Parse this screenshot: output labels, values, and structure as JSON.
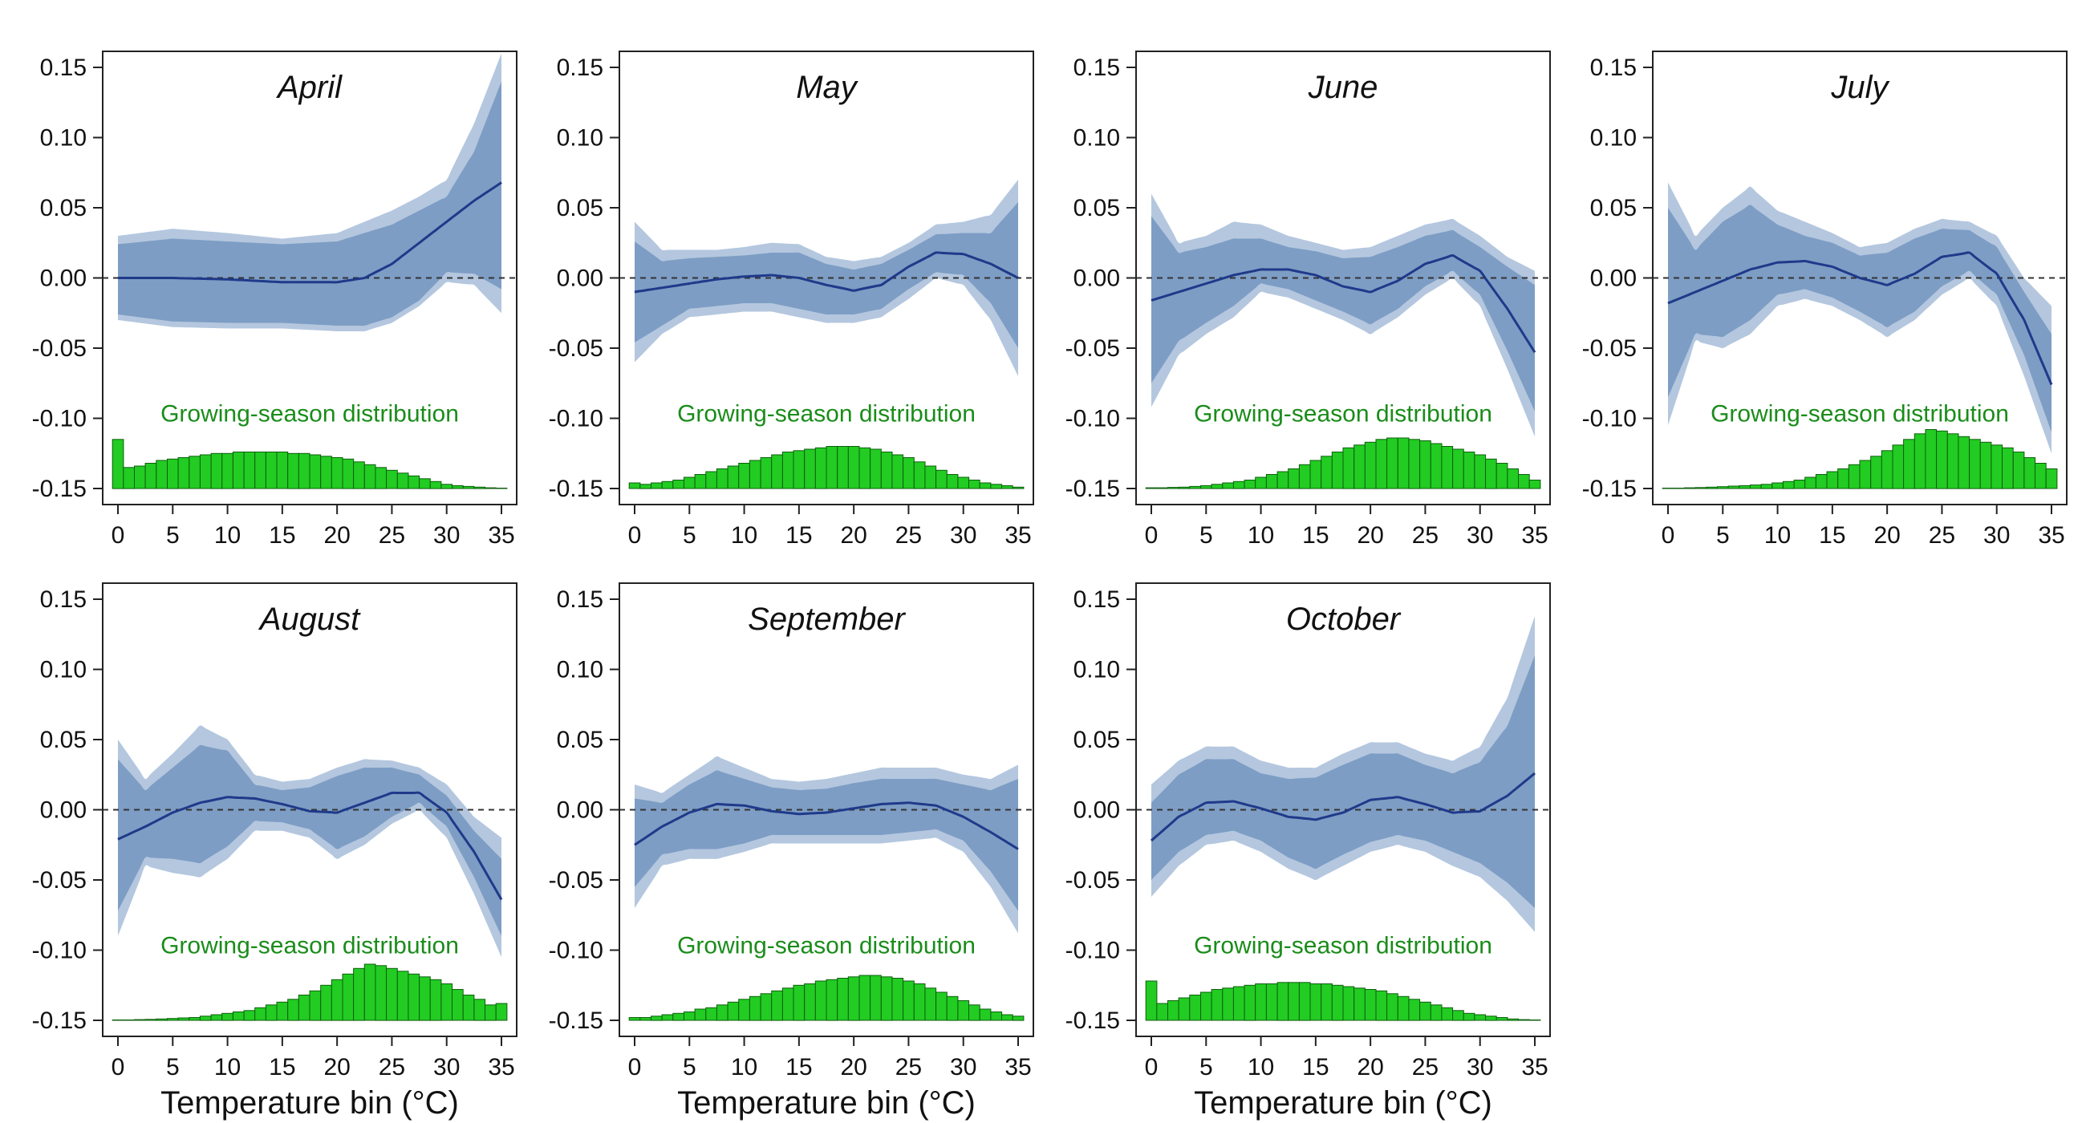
{
  "chart_data": [
    {
      "type": "line",
      "title": "April",
      "xlabel": "",
      "ylabel": "",
      "annotation": "Growing-season distribution",
      "xlim": [
        0,
        35
      ],
      "ylim": [
        -0.15,
        0.15
      ],
      "x_ticks": [
        0,
        5,
        10,
        15,
        20,
        25,
        30,
        35
      ],
      "y_ticks": [
        -0.15,
        -0.1,
        -0.05,
        0.0,
        0.05,
        0.1,
        0.15
      ],
      "x": [
        0,
        5,
        10,
        15,
        20,
        22.5,
        25,
        27.5,
        30,
        32.5,
        35
      ],
      "estimate": [
        0.0,
        0.0,
        -0.001,
        -0.003,
        -0.003,
        0.0,
        0.01,
        0.025,
        0.04,
        0.055,
        0.068
      ],
      "ci95_lower": [
        -0.03,
        -0.035,
        -0.036,
        -0.036,
        -0.038,
        -0.038,
        -0.032,
        -0.02,
        -0.003,
        -0.005,
        -0.025
      ],
      "ci95_upper": [
        0.03,
        0.035,
        0.032,
        0.028,
        0.032,
        0.04,
        0.048,
        0.058,
        0.07,
        0.11,
        0.16
      ],
      "ci90_lower": [
        -0.026,
        -0.031,
        -0.032,
        -0.032,
        -0.034,
        -0.034,
        -0.028,
        -0.016,
        0.004,
        0.003,
        -0.008
      ],
      "ci90_upper": [
        0.024,
        0.028,
        0.026,
        0.024,
        0.026,
        0.032,
        0.038,
        0.048,
        0.058,
        0.09,
        0.14
      ],
      "distribution": [
        0.035,
        0.015,
        0.016,
        0.018,
        0.02,
        0.021,
        0.022,
        0.023,
        0.024,
        0.025,
        0.025,
        0.026,
        0.026,
        0.026,
        0.026,
        0.026,
        0.025,
        0.025,
        0.024,
        0.023,
        0.022,
        0.021,
        0.019,
        0.017,
        0.015,
        0.013,
        0.011,
        0.009,
        0.007,
        0.005,
        0.003,
        0.002,
        0.0015,
        0.001,
        0.0005,
        0.0003
      ]
    },
    {
      "type": "line",
      "title": "May",
      "xlabel": "",
      "ylabel": "",
      "annotation": "Growing-season distribution",
      "xlim": [
        0,
        35
      ],
      "ylim": [
        -0.15,
        0.15
      ],
      "x_ticks": [
        0,
        5,
        10,
        15,
        20,
        25,
        30,
        35
      ],
      "y_ticks": [
        -0.15,
        -0.1,
        -0.05,
        0.0,
        0.05,
        0.1,
        0.15
      ],
      "x": [
        0,
        2.5,
        5,
        7.5,
        10,
        12.5,
        15,
        17.5,
        20,
        22.5,
        25,
        27.5,
        30,
        32.5,
        35
      ],
      "estimate": [
        -0.01,
        -0.007,
        -0.004,
        -0.001,
        0.001,
        0.002,
        0.0,
        -0.005,
        -0.009,
        -0.005,
        0.008,
        0.018,
        0.017,
        0.01,
        0.0
      ],
      "ci95_lower": [
        -0.06,
        -0.04,
        -0.028,
        -0.026,
        -0.024,
        -0.024,
        -0.028,
        -0.032,
        -0.032,
        -0.028,
        -0.015,
        0.0,
        -0.005,
        -0.03,
        -0.07
      ],
      "ci95_upper": [
        0.04,
        0.02,
        0.02,
        0.02,
        0.022,
        0.025,
        0.024,
        0.015,
        0.012,
        0.015,
        0.025,
        0.038,
        0.04,
        0.045,
        0.07
      ],
      "ci90_lower": [
        -0.046,
        -0.034,
        -0.022,
        -0.02,
        -0.018,
        -0.018,
        -0.022,
        -0.026,
        -0.026,
        -0.022,
        -0.008,
        0.004,
        0.002,
        -0.018,
        -0.05
      ],
      "ci90_upper": [
        0.026,
        0.012,
        0.014,
        0.015,
        0.016,
        0.018,
        0.018,
        0.01,
        0.006,
        0.01,
        0.02,
        0.031,
        0.032,
        0.032,
        0.054
      ],
      "distribution": [
        0.004,
        0.003,
        0.004,
        0.005,
        0.006,
        0.008,
        0.01,
        0.012,
        0.014,
        0.016,
        0.018,
        0.02,
        0.022,
        0.024,
        0.026,
        0.027,
        0.028,
        0.029,
        0.03,
        0.03,
        0.03,
        0.029,
        0.028,
        0.026,
        0.024,
        0.022,
        0.019,
        0.016,
        0.013,
        0.01,
        0.008,
        0.006,
        0.004,
        0.003,
        0.002,
        0.001
      ]
    },
    {
      "type": "line",
      "title": "June",
      "xlabel": "",
      "ylabel": "",
      "annotation": "Growing-season distribution",
      "xlim": [
        0,
        35
      ],
      "ylim": [
        -0.15,
        0.15
      ],
      "x_ticks": [
        0,
        5,
        10,
        15,
        20,
        25,
        30,
        35
      ],
      "y_ticks": [
        -0.15,
        -0.1,
        -0.05,
        0.0,
        0.05,
        0.1,
        0.15
      ],
      "x": [
        0,
        2.5,
        5,
        7.5,
        10,
        12.5,
        15,
        17.5,
        20,
        22.5,
        25,
        27.5,
        30,
        32.5,
        35
      ],
      "estimate": [
        -0.016,
        -0.01,
        -0.004,
        0.002,
        0.006,
        0.006,
        0.002,
        -0.006,
        -0.01,
        -0.002,
        0.01,
        0.016,
        0.005,
        -0.022,
        -0.053
      ],
      "ci95_lower": [
        -0.092,
        -0.055,
        -0.04,
        -0.028,
        -0.01,
        -0.014,
        -0.022,
        -0.03,
        -0.04,
        -0.028,
        -0.012,
        0.0,
        -0.02,
        -0.065,
        -0.113
      ],
      "ci95_upper": [
        0.06,
        0.025,
        0.03,
        0.04,
        0.038,
        0.03,
        0.025,
        0.02,
        0.022,
        0.03,
        0.038,
        0.042,
        0.03,
        0.015,
        0.005
      ],
      "ci90_lower": [
        -0.075,
        -0.045,
        -0.032,
        -0.02,
        -0.004,
        -0.008,
        -0.016,
        -0.024,
        -0.033,
        -0.022,
        -0.006,
        0.005,
        -0.012,
        -0.052,
        -0.095
      ],
      "ci90_upper": [
        0.044,
        0.018,
        0.022,
        0.028,
        0.028,
        0.022,
        0.019,
        0.014,
        0.015,
        0.022,
        0.03,
        0.034,
        0.022,
        0.008,
        -0.005
      ],
      "distribution": [
        0.0005,
        0.0005,
        0.0008,
        0.001,
        0.0015,
        0.002,
        0.003,
        0.004,
        0.005,
        0.006,
        0.008,
        0.01,
        0.012,
        0.014,
        0.017,
        0.02,
        0.023,
        0.026,
        0.029,
        0.031,
        0.033,
        0.035,
        0.036,
        0.036,
        0.035,
        0.034,
        0.032,
        0.03,
        0.028,
        0.026,
        0.024,
        0.021,
        0.018,
        0.014,
        0.01,
        0.006
      ]
    },
    {
      "type": "line",
      "title": "July",
      "xlabel": "",
      "ylabel": "",
      "annotation": "Growing-season distribution",
      "xlim": [
        0,
        35
      ],
      "ylim": [
        -0.15,
        0.15
      ],
      "x_ticks": [
        0,
        5,
        10,
        15,
        20,
        25,
        30,
        35
      ],
      "y_ticks": [
        -0.15,
        -0.1,
        -0.05,
        0.0,
        0.05,
        0.1,
        0.15
      ],
      "x": [
        0,
        2.5,
        5,
        7.5,
        10,
        12.5,
        15,
        17.5,
        20,
        22.5,
        25,
        27.5,
        30,
        32.5,
        35
      ],
      "estimate": [
        -0.018,
        -0.01,
        -0.002,
        0.006,
        0.011,
        0.012,
        0.008,
        0.0,
        -0.005,
        0.003,
        0.015,
        0.018,
        0.003,
        -0.03,
        -0.076
      ],
      "ci95_lower": [
        -0.105,
        -0.045,
        -0.05,
        -0.04,
        -0.02,
        -0.015,
        -0.02,
        -0.03,
        -0.042,
        -0.03,
        -0.012,
        0.0,
        -0.02,
        -0.07,
        -0.125
      ],
      "ci95_upper": [
        0.068,
        0.03,
        0.05,
        0.065,
        0.048,
        0.04,
        0.032,
        0.022,
        0.025,
        0.035,
        0.042,
        0.04,
        0.03,
        0.0,
        -0.02
      ],
      "ci90_lower": [
        -0.085,
        -0.04,
        -0.042,
        -0.03,
        -0.012,
        -0.008,
        -0.014,
        -0.024,
        -0.035,
        -0.024,
        -0.006,
        0.005,
        -0.012,
        -0.055,
        -0.11
      ],
      "ci90_upper": [
        0.05,
        0.02,
        0.04,
        0.052,
        0.038,
        0.03,
        0.025,
        0.016,
        0.018,
        0.028,
        0.035,
        0.034,
        0.022,
        -0.01,
        -0.04
      ],
      "distribution": [
        0.0003,
        0.0003,
        0.0005,
        0.0007,
        0.001,
        0.0013,
        0.0017,
        0.002,
        0.0025,
        0.003,
        0.004,
        0.005,
        0.006,
        0.008,
        0.01,
        0.012,
        0.014,
        0.017,
        0.02,
        0.023,
        0.027,
        0.031,
        0.035,
        0.039,
        0.042,
        0.041,
        0.039,
        0.037,
        0.035,
        0.033,
        0.031,
        0.029,
        0.026,
        0.022,
        0.018,
        0.014
      ]
    },
    {
      "type": "line",
      "title": "August",
      "xlabel": "Temperature bin (°C)",
      "ylabel": "",
      "annotation": "Growing-season distribution",
      "xlim": [
        0,
        35
      ],
      "ylim": [
        -0.15,
        0.15
      ],
      "x_ticks": [
        0,
        5,
        10,
        15,
        20,
        25,
        30,
        35
      ],
      "y_ticks": [
        -0.15,
        -0.1,
        -0.05,
        0.0,
        0.05,
        0.1,
        0.15
      ],
      "x": [
        0,
        2.5,
        5,
        7.5,
        10,
        12.5,
        15,
        17.5,
        20,
        22.5,
        25,
        27.5,
        30,
        32.5,
        35
      ],
      "estimate": [
        -0.021,
        -0.012,
        -0.002,
        0.005,
        0.009,
        0.008,
        0.004,
        -0.001,
        -0.002,
        0.005,
        0.012,
        0.012,
        -0.002,
        -0.03,
        -0.064
      ],
      "ci95_lower": [
        -0.09,
        -0.04,
        -0.045,
        -0.048,
        -0.035,
        -0.015,
        -0.015,
        -0.02,
        -0.035,
        -0.025,
        -0.01,
        0.0,
        -0.02,
        -0.06,
        -0.105
      ],
      "ci95_upper": [
        0.05,
        0.022,
        0.04,
        0.06,
        0.05,
        0.025,
        0.02,
        0.022,
        0.03,
        0.036,
        0.035,
        0.03,
        0.018,
        -0.005,
        -0.02
      ],
      "ci90_lower": [
        -0.072,
        -0.034,
        -0.035,
        -0.038,
        -0.026,
        -0.008,
        -0.009,
        -0.014,
        -0.028,
        -0.019,
        -0.005,
        0.005,
        -0.012,
        -0.048,
        -0.09
      ],
      "ci90_upper": [
        0.036,
        0.014,
        0.03,
        0.046,
        0.042,
        0.018,
        0.014,
        0.016,
        0.024,
        0.03,
        0.03,
        0.025,
        0.01,
        -0.015,
        -0.035
      ],
      "distribution": [
        0.0003,
        0.0003,
        0.0005,
        0.0007,
        0.001,
        0.0013,
        0.0017,
        0.002,
        0.003,
        0.004,
        0.005,
        0.006,
        0.007,
        0.009,
        0.011,
        0.013,
        0.015,
        0.018,
        0.021,
        0.025,
        0.029,
        0.033,
        0.037,
        0.04,
        0.039,
        0.037,
        0.035,
        0.033,
        0.031,
        0.029,
        0.026,
        0.022,
        0.018,
        0.015,
        0.011,
        0.012
      ]
    },
    {
      "type": "line",
      "title": "September",
      "xlabel": "Temperature bin (°C)",
      "ylabel": "",
      "annotation": "Growing-season distribution",
      "xlim": [
        0,
        35
      ],
      "ylim": [
        -0.15,
        0.15
      ],
      "x_ticks": [
        0,
        5,
        10,
        15,
        20,
        25,
        30,
        35
      ],
      "y_ticks": [
        -0.15,
        -0.1,
        -0.05,
        0.0,
        0.05,
        0.1,
        0.15
      ],
      "x": [
        0,
        2.5,
        5,
        7.5,
        10,
        12.5,
        15,
        17.5,
        20,
        22.5,
        25,
        27.5,
        30,
        32.5,
        35
      ],
      "estimate": [
        -0.025,
        -0.012,
        -0.002,
        0.004,
        0.003,
        -0.001,
        -0.003,
        -0.002,
        0.001,
        0.004,
        0.005,
        0.003,
        -0.005,
        -0.016,
        -0.028
      ],
      "ci95_lower": [
        -0.07,
        -0.04,
        -0.035,
        -0.035,
        -0.03,
        -0.024,
        -0.024,
        -0.024,
        -0.024,
        -0.024,
        -0.022,
        -0.02,
        -0.03,
        -0.055,
        -0.088
      ],
      "ci95_upper": [
        0.018,
        0.012,
        0.025,
        0.038,
        0.03,
        0.022,
        0.02,
        0.022,
        0.026,
        0.03,
        0.03,
        0.03,
        0.025,
        0.022,
        0.032
      ],
      "ci90_lower": [
        -0.055,
        -0.032,
        -0.028,
        -0.028,
        -0.024,
        -0.018,
        -0.018,
        -0.018,
        -0.018,
        -0.018,
        -0.016,
        -0.014,
        -0.022,
        -0.044,
        -0.072
      ],
      "ci90_upper": [
        0.008,
        0.005,
        0.018,
        0.028,
        0.022,
        0.016,
        0.014,
        0.015,
        0.019,
        0.022,
        0.022,
        0.022,
        0.018,
        0.014,
        0.022
      ],
      "distribution": [
        0.002,
        0.002,
        0.003,
        0.004,
        0.005,
        0.006,
        0.008,
        0.009,
        0.011,
        0.013,
        0.015,
        0.017,
        0.019,
        0.021,
        0.023,
        0.025,
        0.026,
        0.028,
        0.029,
        0.03,
        0.031,
        0.032,
        0.032,
        0.031,
        0.03,
        0.028,
        0.026,
        0.023,
        0.02,
        0.017,
        0.014,
        0.011,
        0.008,
        0.006,
        0.004,
        0.003
      ]
    },
    {
      "type": "line",
      "title": "October",
      "xlabel": "Temperature bin (°C)",
      "ylabel": "",
      "annotation": "Growing-season distribution",
      "xlim": [
        0,
        35
      ],
      "ylim": [
        -0.15,
        0.15
      ],
      "x_ticks": [
        0,
        5,
        10,
        15,
        20,
        25,
        30,
        35
      ],
      "y_ticks": [
        -0.15,
        -0.1,
        -0.05,
        0.0,
        0.05,
        0.1,
        0.15
      ],
      "x": [
        0,
        2.5,
        5,
        7.5,
        10,
        12.5,
        15,
        17.5,
        20,
        22.5,
        25,
        27.5,
        30,
        32.5,
        35
      ],
      "estimate": [
        -0.022,
        -0.005,
        0.005,
        0.006,
        0.001,
        -0.005,
        -0.007,
        -0.002,
        0.007,
        0.009,
        0.004,
        -0.002,
        -0.001,
        0.01,
        0.026
      ],
      "ci95_lower": [
        -0.062,
        -0.04,
        -0.025,
        -0.022,
        -0.03,
        -0.042,
        -0.05,
        -0.04,
        -0.03,
        -0.025,
        -0.03,
        -0.04,
        -0.048,
        -0.065,
        -0.087
      ],
      "ci95_upper": [
        0.018,
        0.035,
        0.045,
        0.045,
        0.035,
        0.03,
        0.03,
        0.04,
        0.048,
        0.048,
        0.04,
        0.035,
        0.045,
        0.08,
        0.138
      ],
      "ci90_lower": [
        -0.05,
        -0.03,
        -0.018,
        -0.015,
        -0.022,
        -0.034,
        -0.042,
        -0.032,
        -0.023,
        -0.018,
        -0.022,
        -0.03,
        -0.038,
        -0.052,
        -0.07
      ],
      "ci90_upper": [
        0.005,
        0.025,
        0.036,
        0.036,
        0.026,
        0.022,
        0.023,
        0.032,
        0.04,
        0.04,
        0.032,
        0.026,
        0.034,
        0.06,
        0.11
      ],
      "distribution": [
        0.028,
        0.012,
        0.014,
        0.016,
        0.018,
        0.02,
        0.022,
        0.023,
        0.024,
        0.025,
        0.026,
        0.026,
        0.027,
        0.027,
        0.027,
        0.026,
        0.026,
        0.025,
        0.024,
        0.023,
        0.022,
        0.021,
        0.019,
        0.017,
        0.015,
        0.013,
        0.011,
        0.009,
        0.007,
        0.005,
        0.004,
        0.003,
        0.002,
        0.001,
        0.0005,
        0.0003
      ]
    }
  ],
  "colors": {
    "estimate_line": "#1f3a8a",
    "ci90_band": "#7d9dc4",
    "ci95_band": "#b4c7df",
    "zero_line": "#333333",
    "bars_fill": "#22cc22",
    "bars_stroke": "#0d5e0d",
    "annotation_text": "#1a8c1a"
  }
}
